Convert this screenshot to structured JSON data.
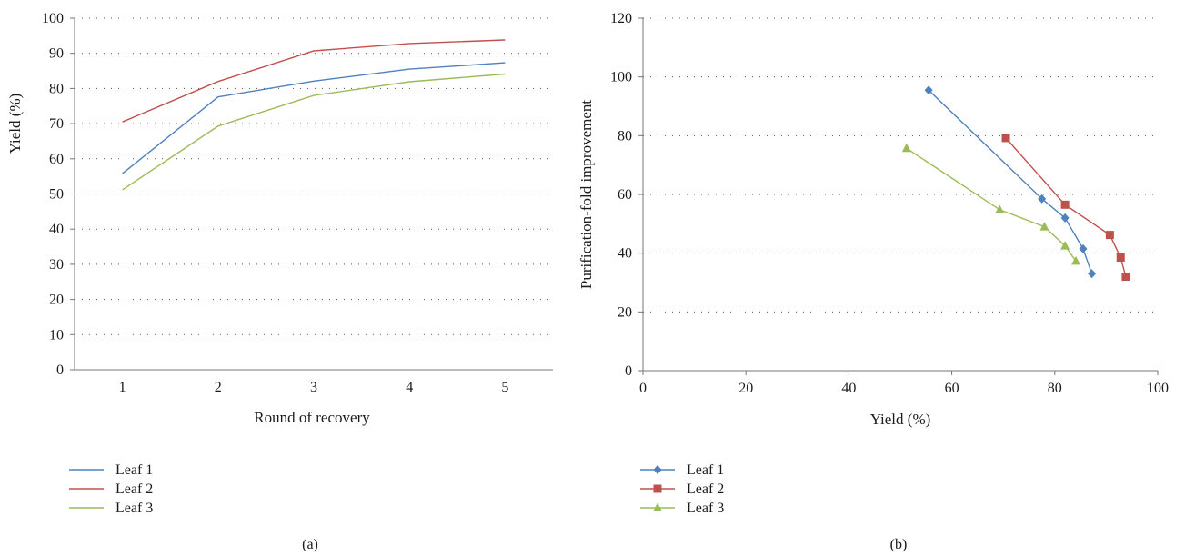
{
  "chart_data": [
    {
      "type": "line",
      "panel_label": "(a)",
      "xlabel": "Round of recovery",
      "ylabel": "Yield (%)",
      "categories": [
        "1",
        "2",
        "3",
        "4",
        "5"
      ],
      "ylim": [
        0,
        100
      ],
      "yticks": [
        0,
        10,
        20,
        30,
        40,
        50,
        60,
        70,
        80,
        90,
        100
      ],
      "grid": "horizontal-dotted",
      "legend_position": "bottom-left",
      "series": [
        {
          "name": "Leaf 1",
          "color": "#4f81bd",
          "values": [
            55.8,
            77.6,
            82.1,
            85.5,
            87.3
          ]
        },
        {
          "name": "Leaf 2",
          "color": "#c0504d",
          "values": [
            70.5,
            82.0,
            90.7,
            92.8,
            93.8
          ]
        },
        {
          "name": "Leaf 3",
          "color": "#9bbb59",
          "values": [
            51.2,
            69.3,
            78.0,
            81.9,
            84.1
          ]
        }
      ]
    },
    {
      "type": "scatter",
      "panel_label": "(b)",
      "xlabel": "Yield (%)",
      "ylabel": "Purification-fold improvement",
      "xlim": [
        0,
        100
      ],
      "ylim": [
        0,
        120
      ],
      "xticks": [
        0,
        20,
        40,
        60,
        80,
        100
      ],
      "yticks": [
        0,
        20,
        40,
        60,
        80,
        100,
        120
      ],
      "grid": "horizontal-dotted",
      "legend_position": "bottom-left",
      "series": [
        {
          "name": "Leaf 1",
          "color": "#4f81bd",
          "marker": "diamond",
          "x": [
            55.5,
            77.5,
            82.0,
            85.5,
            87.2
          ],
          "y": [
            95.5,
            58.5,
            52.0,
            41.5,
            33.0
          ]
        },
        {
          "name": "Leaf 2",
          "color": "#c0504d",
          "marker": "square",
          "x": [
            70.5,
            82.0,
            90.7,
            92.8,
            93.8
          ],
          "y": [
            79.2,
            56.5,
            46.2,
            38.5,
            32.0
          ]
        },
        {
          "name": "Leaf 3",
          "color": "#9bbb59",
          "marker": "triangle",
          "x": [
            51.2,
            69.3,
            78.0,
            82.0,
            84.1
          ],
          "y": [
            75.7,
            54.8,
            49.0,
            42.5,
            37.3
          ]
        }
      ]
    }
  ]
}
